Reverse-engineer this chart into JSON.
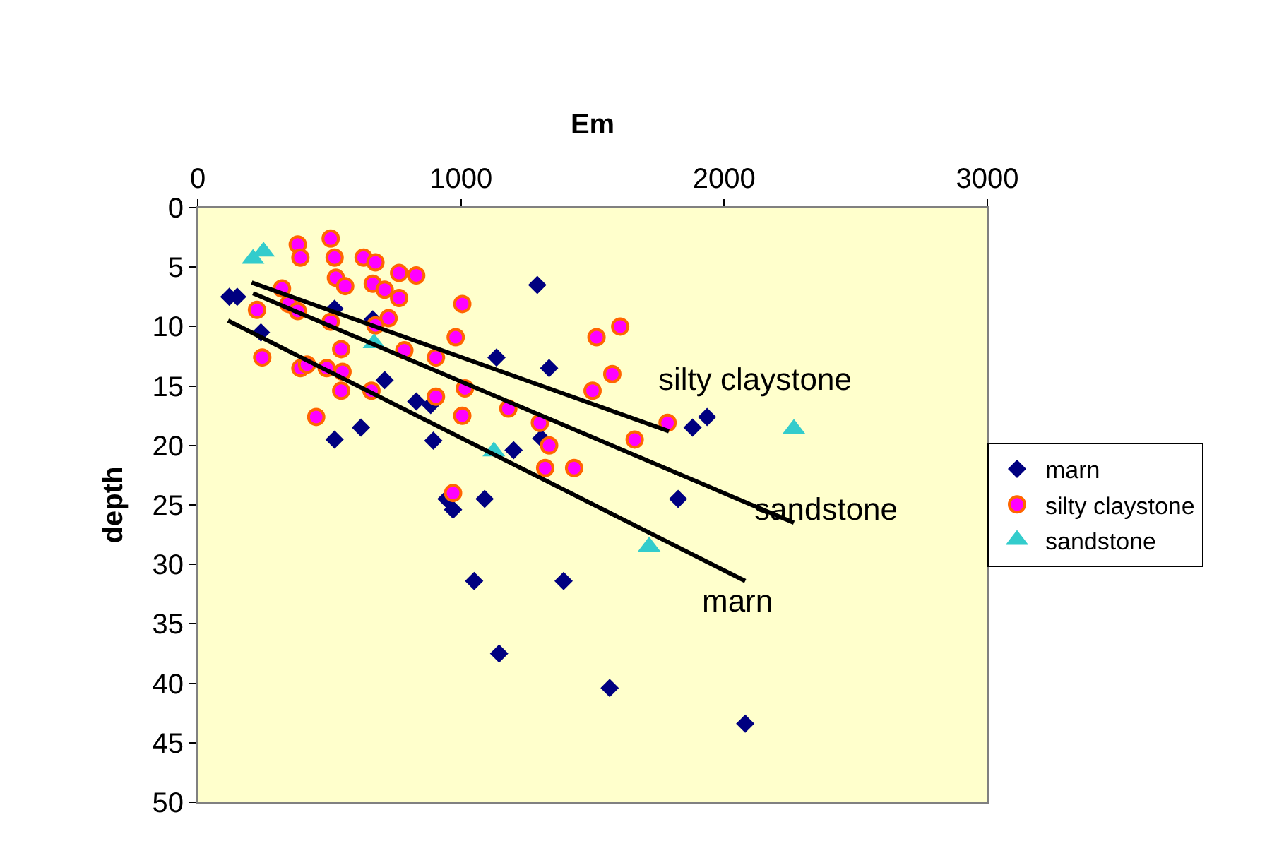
{
  "chart_data": {
    "type": "scatter",
    "xlabel": "Em",
    "ylabel": "depth",
    "xlim": [
      0,
      3000
    ],
    "xticks": [
      0,
      1000,
      2000,
      3000
    ],
    "ylim": [
      50,
      0
    ],
    "yticks": [
      0,
      5,
      10,
      15,
      20,
      25,
      30,
      35,
      40,
      45,
      50
    ],
    "grid": false,
    "legend": "right",
    "series": [
      {
        "name": "marn",
        "marker": "diamond",
        "color": "#000080",
        "x": [
          120,
          150,
          240,
          520,
          665,
          710,
          830,
          885,
          520,
          620,
          895,
          1200,
          1305,
          945,
          970,
          1090,
          1050,
          1390,
          1145,
          1565,
          1290,
          1135,
          1335,
          1935,
          1880,
          1825,
          2080
        ],
        "values": [
          7.5,
          7.5,
          10.5,
          8.5,
          9.4,
          14.5,
          16.3,
          16.6,
          19.5,
          18.5,
          19.6,
          20.4,
          19.4,
          24.5,
          25.4,
          24.5,
          31.4,
          31.4,
          37.5,
          40.4,
          6.5,
          12.6,
          13.5,
          17.6,
          18.5,
          24.5,
          43.4
        ]
      },
      {
        "name": "silty claystone",
        "marker": "circle",
        "color": "#ff00ff",
        "x": [
          380,
          390,
          505,
          520,
          630,
          675,
          765,
          830,
          525,
          560,
          665,
          710,
          765,
          320,
          225,
          345,
          380,
          505,
          725,
          675,
          1005,
          980,
          545,
          785,
          905,
          245,
          390,
          415,
          490,
          550,
          545,
          660,
          905,
          1015,
          1005,
          450,
          1515,
          1605,
          1575,
          1500,
          1180,
          1300,
          1335,
          1320,
          1430,
          1660,
          1785,
          970
        ],
        "values": [
          3.1,
          4.2,
          2.6,
          4.2,
          4.2,
          4.6,
          5.5,
          5.7,
          5.9,
          6.6,
          6.4,
          6.9,
          7.6,
          6.8,
          8.6,
          8.1,
          8.7,
          9.6,
          9.3,
          9.9,
          8.1,
          10.9,
          11.9,
          12.0,
          12.6,
          12.6,
          13.5,
          13.2,
          13.5,
          13.8,
          15.4,
          15.4,
          15.9,
          15.2,
          17.5,
          17.6,
          10.9,
          10.0,
          14.0,
          15.4,
          16.9,
          18.1,
          20.0,
          21.9,
          21.9,
          19.5,
          18.1,
          24.0
        ]
      },
      {
        "name": "sandstone",
        "marker": "triangle",
        "color": "#33cccc",
        "x": [
          210,
          250,
          670,
          1125,
          1715,
          2265
        ],
        "values": [
          4.3,
          3.7,
          11.4,
          20.5,
          28.5,
          18.6
        ]
      },
      {
        "name": "silty claystone",
        "type": "line",
        "color": "#000000",
        "x": [
          205,
          1790
        ],
        "values": [
          6.3,
          18.8
        ]
      },
      {
        "name": "sandstone",
        "type": "line",
        "color": "#000000",
        "x": [
          210,
          2265
        ],
        "values": [
          7.2,
          26.5
        ]
      },
      {
        "name": "marn",
        "type": "line",
        "color": "#000000",
        "x": [
          115,
          2080
        ],
        "values": [
          9.5,
          31.4
        ]
      }
    ]
  }
}
